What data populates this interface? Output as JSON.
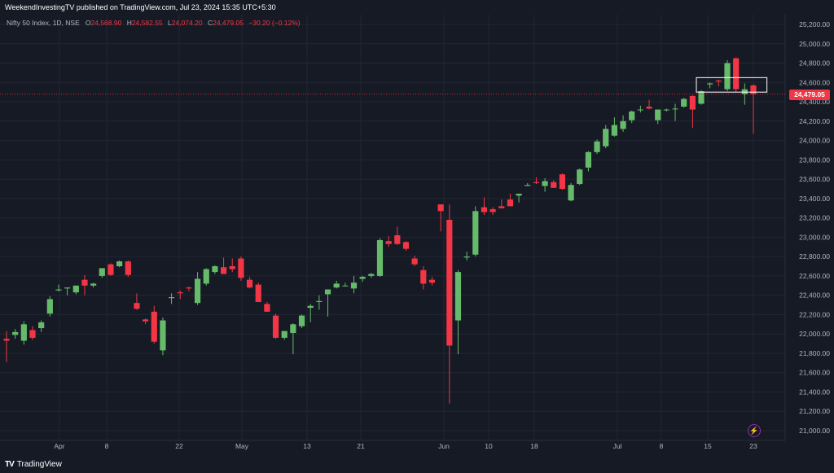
{
  "header": {
    "published": "WeekendInvestingTV published on TradingView.com, Jul 23, 2024 15:35 UTC+5:30"
  },
  "legend": {
    "symbol": "Nifty 50 Index, 1D, NSE",
    "open_label": "O",
    "open": "24,568.90",
    "high_label": "H",
    "high": "24,582.55",
    "low_label": "L",
    "low": "24,074.20",
    "close_label": "C",
    "close": "24,479.05",
    "change": "−30.20 (−0.12%)"
  },
  "last_price_label": "24,479.05",
  "footer": {
    "brand": "TradingView",
    "logo": "TV"
  },
  "icons": {
    "lightning": "lightning-icon"
  },
  "colors": {
    "up": "#4caf50",
    "up_fill": "#66bb6a",
    "down": "#f23645",
    "background": "#161a25",
    "grid": "#232734",
    "text": "#b2b5be",
    "highlight_box": "#ffffff"
  },
  "chart_data": {
    "type": "candlestick",
    "x_tick_labels": [
      "Apr",
      "8",
      "22",
      "May",
      "13",
      "21",
      "Jun",
      "10",
      "18",
      "Jul",
      "8",
      "15",
      "23"
    ],
    "y_tick_labels": [
      "21,000.00",
      "21,200.00",
      "21,400.00",
      "21,600.00",
      "21,800.00",
      "22,000.00",
      "22,200.00",
      "22,400.00",
      "22,600.00",
      "22,800.00",
      "23,000.00",
      "23,200.00",
      "23,400.00",
      "23,600.00",
      "23,800.00",
      "24,000.00",
      "24,200.00",
      "24,400.00",
      "24,600.00",
      "24,800.00",
      "25,000.00",
      "25,200.00"
    ],
    "ylim": [
      20900,
      25300
    ],
    "annotation": "rectangle around Jul 15 – Jul 23 range 24,500–24,650",
    "candles": [
      {
        "o": 21950,
        "h": 22030,
        "l": 21710,
        "c": 21930
      },
      {
        "o": 21990,
        "h": 22050,
        "l": 21950,
        "c": 22020
      },
      {
        "o": 21930,
        "h": 22130,
        "l": 21890,
        "c": 22100
      },
      {
        "o": 22040,
        "h": 22080,
        "l": 21940,
        "c": 21960
      },
      {
        "o": 22060,
        "h": 22140,
        "l": 22020,
        "c": 22120
      },
      {
        "o": 22210,
        "h": 22390,
        "l": 22180,
        "c": 22360
      },
      {
        "o": 22450,
        "h": 22510,
        "l": 22440,
        "c": 22460
      },
      {
        "o": 22470,
        "h": 22480,
        "l": 22400,
        "c": 22480
      },
      {
        "o": 22430,
        "h": 22500,
        "l": 22410,
        "c": 22500
      },
      {
        "o": 22560,
        "h": 22610,
        "l": 22400,
        "c": 22500
      },
      {
        "o": 22500,
        "h": 22530,
        "l": 22480,
        "c": 22520
      },
      {
        "o": 22600,
        "h": 22680,
        "l": 22580,
        "c": 22680
      },
      {
        "o": 22720,
        "h": 22730,
        "l": 22600,
        "c": 22610
      },
      {
        "o": 22700,
        "h": 22760,
        "l": 22690,
        "c": 22750
      },
      {
        "o": 22750,
        "h": 22760,
        "l": 22590,
        "c": 22610
      },
      {
        "o": 22320,
        "h": 22420,
        "l": 22250,
        "c": 22260
      },
      {
        "o": 22150,
        "h": 22160,
        "l": 22100,
        "c": 22130
      },
      {
        "o": 22230,
        "h": 22290,
        "l": 21900,
        "c": 21920
      },
      {
        "o": 21830,
        "h": 22170,
        "l": 21780,
        "c": 22140
      },
      {
        "o": 22370,
        "h": 22420,
        "l": 22310,
        "c": 22380
      },
      {
        "o": 22430,
        "h": 22450,
        "l": 22360,
        "c": 22420
      },
      {
        "o": 22480,
        "h": 22490,
        "l": 22440,
        "c": 22470
      },
      {
        "o": 22320,
        "h": 22640,
        "l": 22300,
        "c": 22570
      },
      {
        "o": 22520,
        "h": 22680,
        "l": 22500,
        "c": 22670
      },
      {
        "o": 22640,
        "h": 22710,
        "l": 22620,
        "c": 22700
      },
      {
        "o": 22690,
        "h": 22790,
        "l": 22620,
        "c": 22620
      },
      {
        "o": 22700,
        "h": 22780,
        "l": 22640,
        "c": 22670
      },
      {
        "o": 22780,
        "h": 22800,
        "l": 22550,
        "c": 22580
      },
      {
        "o": 22560,
        "h": 22590,
        "l": 22470,
        "c": 22480
      },
      {
        "o": 22510,
        "h": 22530,
        "l": 22330,
        "c": 22330
      },
      {
        "o": 22310,
        "h": 22330,
        "l": 22230,
        "c": 22230
      },
      {
        "o": 22190,
        "h": 22210,
        "l": 21950,
        "c": 21960
      },
      {
        "o": 21960,
        "h": 22030,
        "l": 21940,
        "c": 22030
      },
      {
        "o": 22010,
        "h": 22110,
        "l": 21790,
        "c": 22100
      },
      {
        "o": 22080,
        "h": 22200,
        "l": 22060,
        "c": 22190
      },
      {
        "o": 22270,
        "h": 22310,
        "l": 22120,
        "c": 22290
      },
      {
        "o": 22330,
        "h": 22400,
        "l": 22250,
        "c": 22340
      },
      {
        "o": 22410,
        "h": 22440,
        "l": 22180,
        "c": 22460
      },
      {
        "o": 22480,
        "h": 22550,
        "l": 22470,
        "c": 22520
      },
      {
        "o": 22500,
        "h": 22530,
        "l": 22490,
        "c": 22500
      },
      {
        "o": 22470,
        "h": 22600,
        "l": 22420,
        "c": 22530
      },
      {
        "o": 22570,
        "h": 22600,
        "l": 22540,
        "c": 22590
      },
      {
        "o": 22600,
        "h": 22630,
        "l": 22580,
        "c": 22620
      },
      {
        "o": 22600,
        "h": 22990,
        "l": 22590,
        "c": 22970
      },
      {
        "o": 22960,
        "h": 23010,
        "l": 22900,
        "c": 22930
      },
      {
        "o": 23020,
        "h": 23110,
        "l": 22920,
        "c": 22930
      },
      {
        "o": 22950,
        "h": 22960,
        "l": 22860,
        "c": 22880
      },
      {
        "o": 22780,
        "h": 22810,
        "l": 22700,
        "c": 22720
      },
      {
        "o": 22660,
        "h": 22700,
        "l": 22460,
        "c": 22520
      },
      {
        "o": 22560,
        "h": 22590,
        "l": 22500,
        "c": 22530
      },
      {
        "o": 23340,
        "h": 23340,
        "l": 23060,
        "c": 23270
      },
      {
        "o": 23180,
        "h": 23340,
        "l": 21280,
        "c": 21880
      },
      {
        "o": 22140,
        "h": 22660,
        "l": 21790,
        "c": 22640
      },
      {
        "o": 22790,
        "h": 22850,
        "l": 22760,
        "c": 22800
      },
      {
        "o": 22820,
        "h": 23320,
        "l": 22800,
        "c": 23270
      },
      {
        "o": 23310,
        "h": 23410,
        "l": 23230,
        "c": 23260
      },
      {
        "o": 23290,
        "h": 23310,
        "l": 23230,
        "c": 23260
      },
      {
        "o": 23320,
        "h": 23390,
        "l": 23300,
        "c": 23300
      },
      {
        "o": 23390,
        "h": 23450,
        "l": 23320,
        "c": 23320
      },
      {
        "o": 23430,
        "h": 23440,
        "l": 23360,
        "c": 23450
      },
      {
        "o": 23530,
        "h": 23560,
        "l": 23530,
        "c": 23540
      },
      {
        "o": 23570,
        "h": 23620,
        "l": 23550,
        "c": 23560
      },
      {
        "o": 23530,
        "h": 23610,
        "l": 23470,
        "c": 23580
      },
      {
        "o": 23570,
        "h": 23590,
        "l": 23510,
        "c": 23510
      },
      {
        "o": 23650,
        "h": 23660,
        "l": 23490,
        "c": 23500
      },
      {
        "o": 23380,
        "h": 23560,
        "l": 23370,
        "c": 23540
      },
      {
        "o": 23550,
        "h": 23710,
        "l": 23540,
        "c": 23700
      },
      {
        "o": 23720,
        "h": 23890,
        "l": 23680,
        "c": 23880
      },
      {
        "o": 23880,
        "h": 24010,
        "l": 23860,
        "c": 23990
      },
      {
        "o": 23940,
        "h": 24160,
        "l": 23920,
        "c": 24120
      },
      {
        "o": 24050,
        "h": 24240,
        "l": 24040,
        "c": 24160
      },
      {
        "o": 24120,
        "h": 24260,
        "l": 24090,
        "c": 24200
      },
      {
        "o": 24210,
        "h": 24310,
        "l": 24180,
        "c": 24300
      },
      {
        "o": 24320,
        "h": 24360,
        "l": 24290,
        "c": 24320
      },
      {
        "o": 24350,
        "h": 24420,
        "l": 24320,
        "c": 24330
      },
      {
        "o": 24210,
        "h": 24300,
        "l": 24170,
        "c": 24320
      },
      {
        "o": 24320,
        "h": 24330,
        "l": 24300,
        "c": 24320
      },
      {
        "o": 24330,
        "h": 24380,
        "l": 24200,
        "c": 24330
      },
      {
        "o": 24350,
        "h": 24440,
        "l": 24340,
        "c": 24430
      },
      {
        "o": 24460,
        "h": 24470,
        "l": 24130,
        "c": 24320
      },
      {
        "o": 24380,
        "h": 24520,
        "l": 24370,
        "c": 24510
      },
      {
        "o": 24580,
        "h": 24600,
        "l": 24540,
        "c": 24590
      },
      {
        "o": 24620,
        "h": 24630,
        "l": 24560,
        "c": 24610
      },
      {
        "o": 24530,
        "h": 24830,
        "l": 24510,
        "c": 24800
      },
      {
        "o": 24850,
        "h": 24860,
        "l": 24500,
        "c": 24530
      },
      {
        "o": 24480,
        "h": 24590,
        "l": 24370,
        "c": 24530
      },
      {
        "o": 24570,
        "h": 24580,
        "l": 24070,
        "c": 24480
      }
    ]
  }
}
